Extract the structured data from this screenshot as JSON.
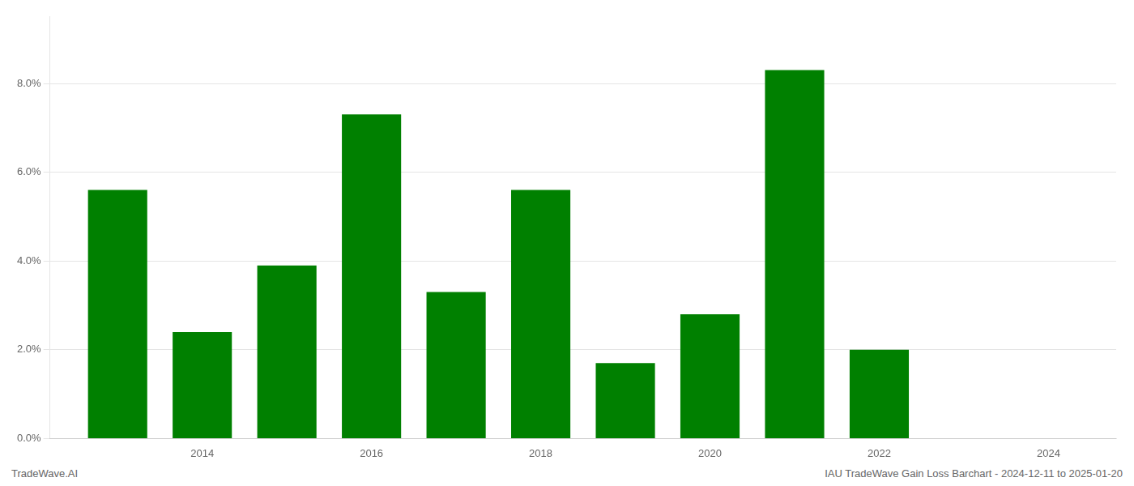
{
  "chart_data": {
    "type": "bar",
    "annotations": [
      "TradeWave.AI",
      "IAU TradeWave Gain Loss Barchart - 2024-12-11 to 2025-01-20"
    ],
    "x": [
      2013,
      2014,
      2015,
      2016,
      2017,
      2018,
      2019,
      2020,
      2021,
      2022,
      2023
    ],
    "values": [
      0.056,
      0.024,
      0.039,
      0.073,
      0.033,
      0.056,
      0.017,
      0.028,
      0.083,
      0.02,
      0.0
    ],
    "color": "#008000",
    "xlim": [
      2012.2,
      2024.8
    ],
    "xticks": [
      2014,
      2016,
      2018,
      2020,
      2022,
      2024
    ],
    "ylim": [
      0,
      0.095
    ],
    "yticks": [
      {
        "value": 0.0,
        "label": "0.0%"
      },
      {
        "value": 0.02,
        "label": "2.0%"
      },
      {
        "value": 0.04,
        "label": "4.0%"
      },
      {
        "value": 0.06,
        "label": "6.0%"
      },
      {
        "value": 0.08,
        "label": "8.0%"
      }
    ],
    "grid": true
  }
}
